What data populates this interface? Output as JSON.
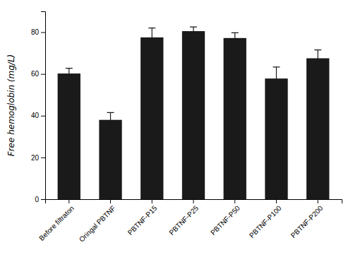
{
  "chart_data": {
    "type": "bar",
    "categories": [
      "Before filtraton",
      "Oringal PBTNF",
      "PBTNF-P15",
      "PBTNF-P25",
      "PBTNF-P50",
      "PBTNF-P100",
      "PBTNF-P200"
    ],
    "values": [
      60.2,
      38.0,
      77.5,
      80.5,
      77.2,
      57.8,
      67.5
    ],
    "errors": [
      2.5,
      3.5,
      4.5,
      2.0,
      2.5,
      5.5,
      4.0
    ],
    "color": "#1a1a1a",
    "ylabel": "Free hemoglobin (mg/L)",
    "ylim": [
      0,
      90
    ],
    "yticks": [
      0,
      20,
      40,
      60,
      80
    ],
    "grid": false
  }
}
